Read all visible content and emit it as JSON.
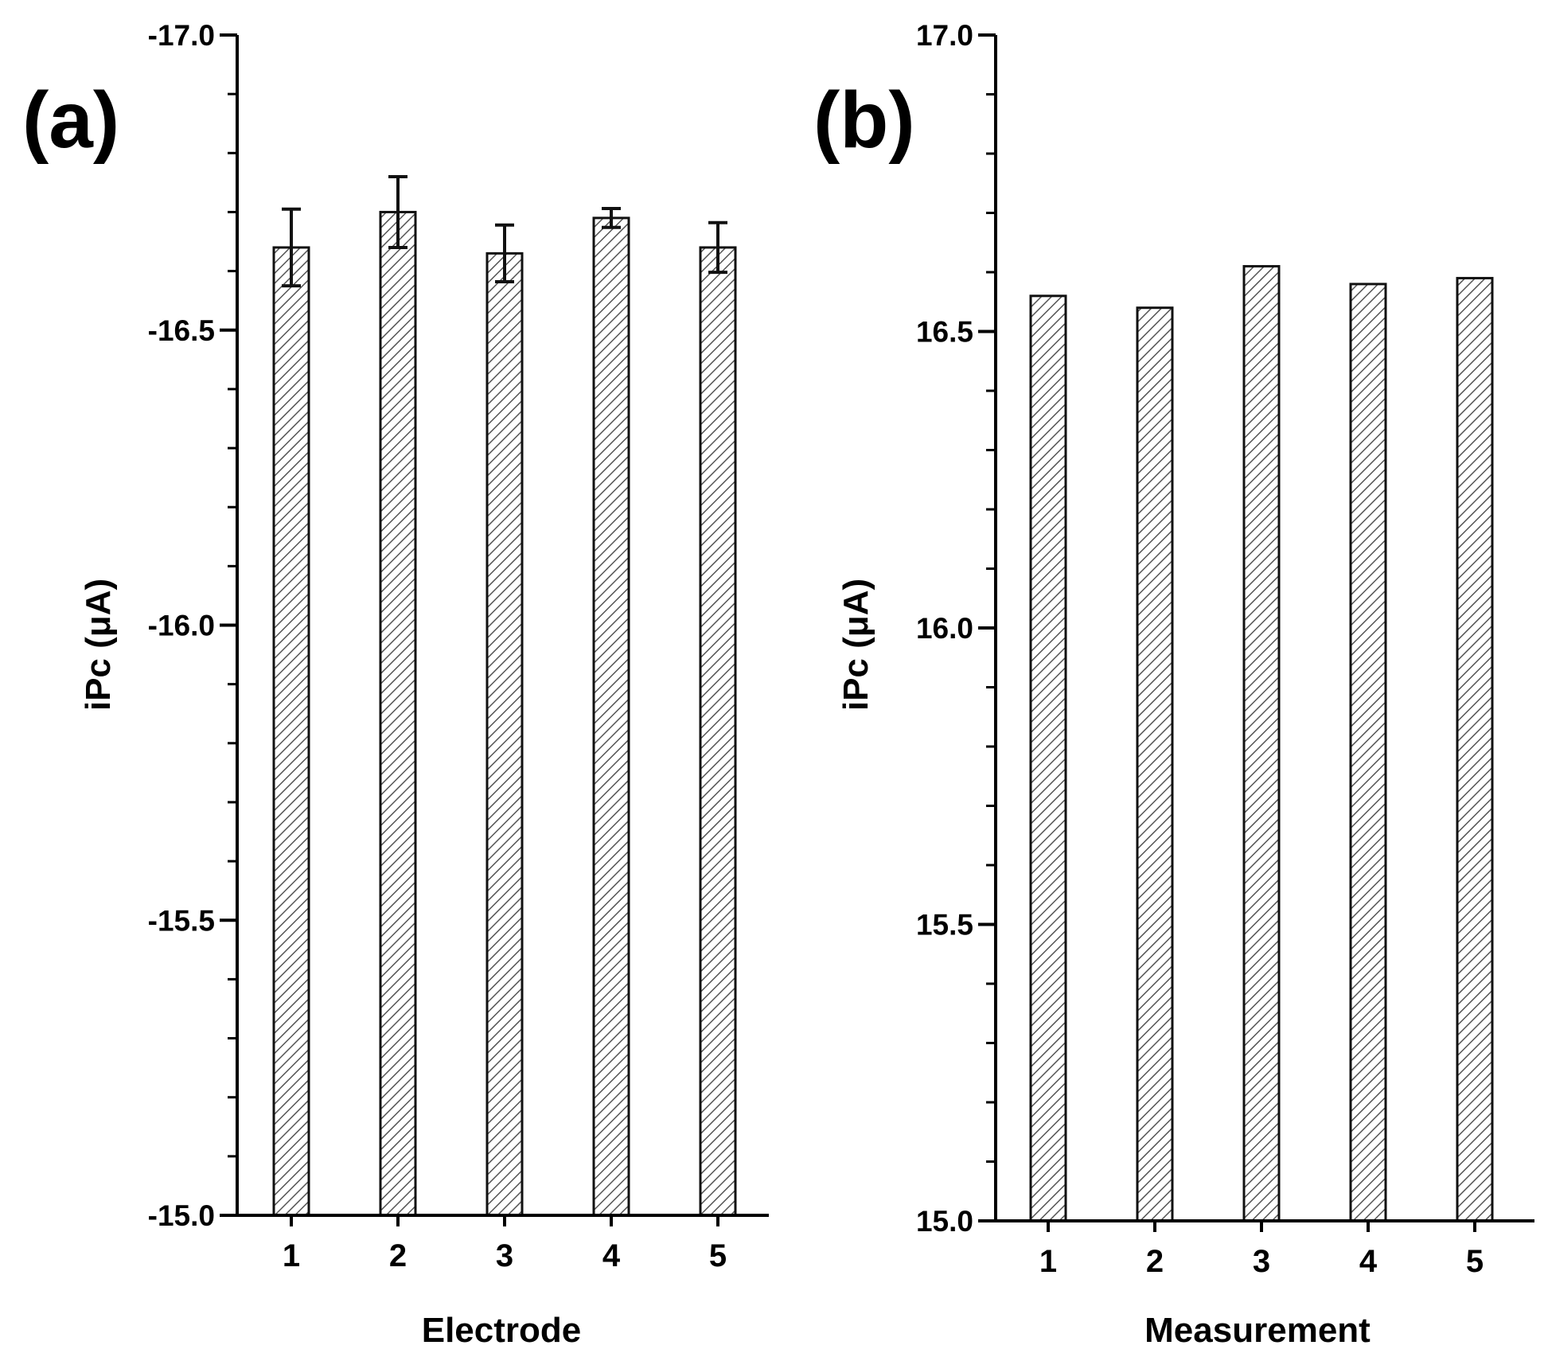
{
  "chart_data": [
    {
      "type": "bar",
      "panel_label": "(a)",
      "categories": [
        "1",
        "2",
        "3",
        "4",
        "5"
      ],
      "values": [
        -16.64,
        -16.7,
        -16.63,
        -16.69,
        -16.64
      ],
      "error": [
        0.065,
        0.06,
        0.048,
        0.016,
        0.042
      ],
      "xlabel": "Electrode",
      "ylabel": "iPc (μA)",
      "ylim": [
        -15.0,
        -17.0
      ],
      "yticks": [
        -15.0,
        -15.5,
        -16.0,
        -16.5,
        -17.0
      ],
      "ytick_labels": [
        "-15.0",
        "-15.5",
        "-16.0",
        "-16.5",
        "-17.0"
      ],
      "grid": false,
      "bar_fill": "hatched"
    },
    {
      "type": "bar",
      "panel_label": "(b)",
      "categories": [
        "1",
        "2",
        "3",
        "4",
        "5"
      ],
      "values": [
        16.56,
        16.54,
        16.61,
        16.58,
        16.59
      ],
      "xlabel": "Measurement",
      "ylabel": "iPc (μA)",
      "ylim": [
        15.0,
        17.0
      ],
      "yticks": [
        15.0,
        15.5,
        16.0,
        16.5,
        17.0
      ],
      "ytick_labels": [
        "15.0",
        "15.5",
        "16.0",
        "16.5",
        "17.0"
      ],
      "grid": false,
      "bar_fill": "hatched"
    }
  ],
  "colors": {
    "axis": "#000000",
    "bar_stroke": "#111111",
    "hatch": "#555555",
    "bar_bg": "#ffffff"
  }
}
